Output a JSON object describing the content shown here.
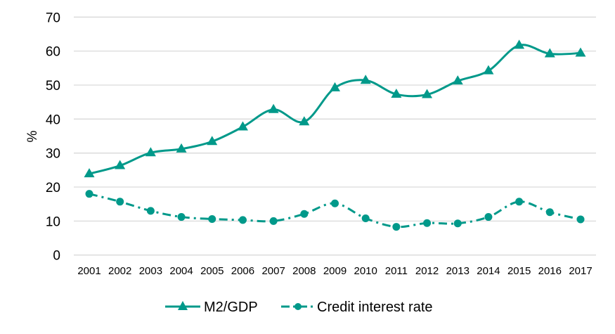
{
  "chart_data": {
    "type": "line",
    "title": "",
    "xlabel": "",
    "ylabel": "%",
    "ylim": [
      0,
      70
    ],
    "yticks": [
      "0",
      "10",
      "20",
      "30",
      "40",
      "50",
      "60",
      "70"
    ],
    "grid": true,
    "legend_position": "bottom",
    "categories": [
      "2001",
      "2002",
      "2003",
      "2004",
      "2005",
      "2006",
      "2007",
      "2008",
      "2009",
      "2010",
      "2011",
      "2012",
      "2013",
      "2014",
      "2015",
      "2016",
      "2017"
    ],
    "series": [
      {
        "name": "M2/GDP",
        "marker": "triangle",
        "style": "solid-smooth",
        "color": "#00998a",
        "values": [
          23.9,
          26.3,
          30.1,
          31.2,
          33.4,
          37.7,
          42.8,
          39.2,
          49.2,
          51.4,
          47.3,
          47.2,
          51.2,
          54.2,
          61.7,
          59.2,
          59.4
        ]
      },
      {
        "name": "Credit interest rate",
        "marker": "circle",
        "style": "dash-dot",
        "color": "#00998a",
        "values": [
          18.0,
          15.7,
          13.0,
          11.2,
          10.6,
          10.3,
          10.0,
          12.1,
          15.2,
          10.8,
          8.3,
          9.4,
          9.3,
          11.2,
          15.7,
          12.6,
          10.5
        ]
      }
    ]
  }
}
